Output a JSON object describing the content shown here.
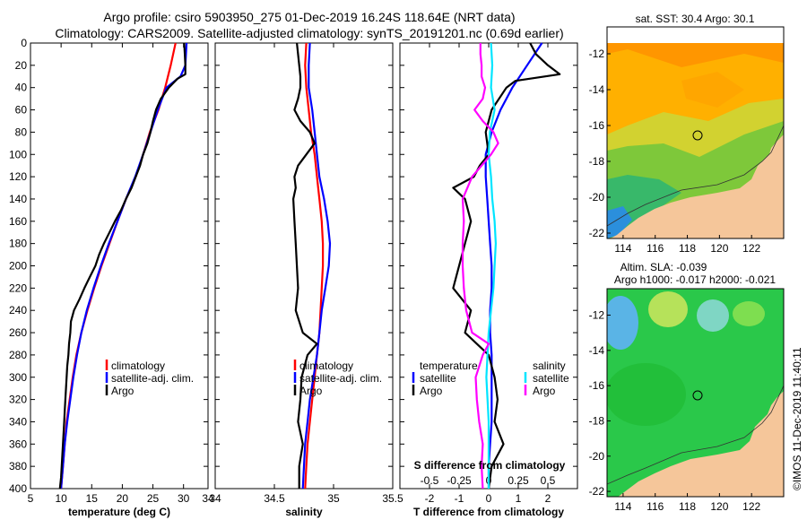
{
  "titles": {
    "line1": "Argo profile: csiro 5903950_275 01-Dec-2019 16.24S 118.64E (NRT data)",
    "line2": "Climatology: CARS2009. Satellite-adjusted climatology: synTS_20191201.nc (0.69d earlier)"
  },
  "colors": {
    "climatology": "#ff0000",
    "satellite": "#0000ff",
    "argo": "#000000",
    "sal_satellite": "#00e5ff",
    "sal_argo": "#ff00ff",
    "land": "#f5c69a"
  },
  "watermark": "©IMOS 11-Dec-2019 11:40:11",
  "chart_data": [
    {
      "id": "temperature",
      "type": "line",
      "xlabel": "temperature (deg C)",
      "xlim": [
        5,
        34
      ],
      "xticks": [
        5,
        10,
        15,
        20,
        25,
        30,
        34
      ],
      "ylim": [
        0,
        400
      ],
      "yticks": [
        0,
        20,
        40,
        60,
        80,
        100,
        120,
        140,
        160,
        180,
        200,
        220,
        240,
        260,
        280,
        300,
        320,
        340,
        360,
        380,
        400
      ],
      "legend": [
        "climatology",
        "satellite-adj. clim.",
        "Argo"
      ],
      "series": [
        {
          "name": "climatology",
          "color": "#ff0000",
          "depth": [
            0,
            20,
            40,
            60,
            80,
            100,
            120,
            140,
            160,
            180,
            200,
            220,
            240,
            260,
            280,
            300,
            320,
            340,
            360,
            380,
            400
          ],
          "values": [
            28.7,
            27.9,
            27.0,
            25.9,
            24.5,
            23.4,
            22.2,
            20.6,
            19.2,
            17.9,
            16.6,
            15.4,
            14.3,
            13.3,
            12.5,
            11.9,
            11.4,
            10.9,
            10.6,
            10.3,
            10.0
          ]
        },
        {
          "name": "satellite-adj. clim.",
          "color": "#0000ff",
          "depth": [
            0,
            20,
            30,
            40,
            60,
            80,
            100,
            120,
            140,
            160,
            180,
            200,
            220,
            240,
            260,
            280,
            300,
            320,
            340,
            360,
            380,
            400
          ],
          "values": [
            30.5,
            30.3,
            29.5,
            27.2,
            25.8,
            24.6,
            23.4,
            22.1,
            20.6,
            19.2,
            17.8,
            16.5,
            15.3,
            14.2,
            13.3,
            12.6,
            12.0,
            11.5,
            11.0,
            10.6,
            10.3,
            10.0
          ]
        },
        {
          "name": "Argo",
          "color": "#000000",
          "depth": [
            0,
            10,
            20,
            28,
            32,
            40,
            50,
            60,
            70,
            80,
            90,
            100,
            110,
            120,
            130,
            140,
            150,
            160,
            170,
            180,
            190,
            200,
            210,
            220,
            230,
            240,
            250,
            260,
            270,
            280,
            290,
            300,
            310,
            320,
            330,
            340,
            350,
            360,
            370,
            380,
            390,
            400
          ],
          "values": [
            30.1,
            30.2,
            30.3,
            30.3,
            29.0,
            27.6,
            26.3,
            25.5,
            25.0,
            24.6,
            24.1,
            23.4,
            22.9,
            22.2,
            21.5,
            20.6,
            19.8,
            18.8,
            17.9,
            17.0,
            16.2,
            15.6,
            14.7,
            13.8,
            13.0,
            12.1,
            11.6,
            11.5,
            11.3,
            11.2,
            11.0,
            10.9,
            10.8,
            10.7,
            10.6,
            10.5,
            10.4,
            10.3,
            10.2,
            10.1,
            10.0,
            9.8
          ]
        }
      ]
    },
    {
      "id": "salinity",
      "type": "line",
      "xlabel": "salinity",
      "xlim": [
        34,
        35.5
      ],
      "xticks": [
        34,
        34.5,
        35,
        35.5
      ],
      "ylim": [
        0,
        400
      ],
      "legend": [
        "climatology",
        "satellite-adj. clim.",
        "Argo"
      ],
      "series": [
        {
          "name": "climatology",
          "color": "#ff0000",
          "depth": [
            0,
            20,
            40,
            60,
            80,
            100,
            120,
            140,
            160,
            180,
            200,
            220,
            240,
            260,
            280,
            300,
            320,
            340,
            360,
            380,
            400
          ],
          "values": [
            34.77,
            34.76,
            34.77,
            34.79,
            34.81,
            34.84,
            34.86,
            34.88,
            34.9,
            34.91,
            34.91,
            34.9,
            34.89,
            34.88,
            34.86,
            34.84,
            34.82,
            34.8,
            34.78,
            34.77,
            34.76
          ]
        },
        {
          "name": "satellite-adj. clim.",
          "color": "#0000ff",
          "depth": [
            0,
            20,
            40,
            60,
            80,
            100,
            120,
            140,
            160,
            180,
            200,
            220,
            240,
            260,
            280,
            300,
            320,
            340,
            360,
            380,
            400
          ],
          "values": [
            34.8,
            34.79,
            34.79,
            34.82,
            34.84,
            34.86,
            34.88,
            34.92,
            34.95,
            34.97,
            34.96,
            34.93,
            34.9,
            34.88,
            34.86,
            34.83,
            34.8,
            34.78,
            34.76,
            34.75,
            34.74
          ]
        },
        {
          "name": "Argo",
          "color": "#000000",
          "depth": [
            0,
            10,
            20,
            30,
            40,
            50,
            60,
            70,
            80,
            90,
            100,
            110,
            120,
            130,
            140,
            160,
            180,
            200,
            220,
            240,
            260,
            270,
            280,
            300,
            320,
            340,
            360,
            380,
            400
          ],
          "values": [
            34.69,
            34.7,
            34.71,
            34.72,
            34.72,
            34.7,
            34.67,
            34.72,
            34.8,
            34.84,
            34.77,
            34.7,
            34.67,
            34.68,
            34.66,
            34.67,
            34.68,
            34.69,
            34.7,
            34.68,
            34.74,
            34.86,
            34.78,
            34.73,
            34.72,
            34.7,
            34.74,
            34.71,
            34.71
          ]
        }
      ]
    },
    {
      "id": "difference",
      "type": "line",
      "xlabel": "T difference from climatology",
      "xlabel2": "S difference from climatology",
      "xlim": [
        -3,
        3
      ],
      "xticks": [
        -2,
        -1,
        0,
        1,
        2
      ],
      "xlim_s": [
        -0.75,
        0.75
      ],
      "xticks_s": [
        -0.5,
        -0.25,
        0,
        0.25,
        0.5
      ],
      "ylim": [
        0,
        400
      ],
      "legend_left": {
        "title": "temperature",
        "items": [
          "satellite",
          "Argo"
        ]
      },
      "legend_right": {
        "title": "salinity",
        "items": [
          "satellite",
          "Argo"
        ]
      },
      "series": [
        {
          "name": "T satellite",
          "axis": "T",
          "color": "#0000ff",
          "depth": [
            0,
            20,
            40,
            60,
            80,
            100,
            120,
            140,
            160,
            180,
            200,
            220,
            240,
            260,
            280,
            300,
            320,
            340,
            360,
            380,
            400
          ],
          "values": [
            1.8,
            1.3,
            0.8,
            0.4,
            0.1,
            -0.1,
            -0.1,
            -0.05,
            0,
            0.05,
            0.1,
            0.1,
            0.05,
            0.05,
            0.1,
            0.1,
            0.1,
            0.1,
            0.05,
            0,
            0
          ]
        },
        {
          "name": "T Argo",
          "axis": "T",
          "color": "#000000",
          "depth": [
            0,
            10,
            20,
            28,
            34,
            40,
            60,
            80,
            100,
            110,
            120,
            130,
            140,
            160,
            180,
            200,
            220,
            240,
            260,
            280,
            300,
            320,
            340,
            360,
            380,
            400
          ],
          "values": [
            1.4,
            1.6,
            2.0,
            2.4,
            0.9,
            0.6,
            0.1,
            -0.1,
            0,
            -0.3,
            -0.5,
            -1.2,
            -0.8,
            -0.6,
            -0.8,
            -1.0,
            -1.2,
            -0.6,
            -0.8,
            0.0,
            0.2,
            0.3,
            0.2,
            0.5,
            0.1,
            0.0
          ]
        },
        {
          "name": "S satellite",
          "axis": "S",
          "color": "#00e5ff",
          "depth": [
            0,
            20,
            40,
            60,
            80,
            100,
            120,
            140,
            160,
            180,
            200,
            220,
            240,
            260,
            280,
            300,
            320,
            340,
            360,
            380,
            400
          ],
          "values": [
            0.02,
            0.03,
            0.02,
            0.05,
            0.01,
            0.0,
            0.02,
            0.03,
            0.05,
            0.06,
            0.05,
            0.04,
            0.02,
            0.0,
            -0.01,
            -0.02,
            -0.01,
            0.0,
            0.0,
            0.0,
            0.0
          ]
        },
        {
          "name": "S Argo",
          "axis": "S",
          "color": "#ff00ff",
          "depth": [
            0,
            10,
            20,
            30,
            40,
            50,
            60,
            70,
            80,
            90,
            100,
            120,
            140,
            160,
            180,
            200,
            220,
            240,
            260,
            270,
            280,
            300,
            320,
            340,
            360,
            380,
            400
          ],
          "values": [
            -0.07,
            -0.07,
            -0.06,
            -0.06,
            -0.03,
            -0.05,
            -0.12,
            -0.05,
            0.04,
            0.08,
            0.02,
            -0.14,
            -0.22,
            -0.21,
            -0.22,
            -0.22,
            -0.21,
            -0.19,
            -0.14,
            0.0,
            -0.05,
            -0.11,
            -0.1,
            -0.08,
            -0.05,
            -0.06,
            -0.05
          ]
        }
      ]
    },
    {
      "id": "sst_map",
      "type": "heatmap",
      "title": "sat. SST: 30.4 Argo: 30.1",
      "xticks": [
        114,
        116,
        118,
        120,
        122
      ],
      "yticks": [
        -12,
        -14,
        -16,
        -18,
        -20,
        -22
      ],
      "xlim": [
        113,
        124
      ],
      "ylim": [
        -22.3,
        -10.5
      ],
      "marker": {
        "lon": 118.64,
        "lat": -16.24
      }
    },
    {
      "id": "sla_map",
      "type": "heatmap",
      "title": "Altim. SLA: -0.039",
      "subtitle": "Argo h1000: -0.017 h2000: -0.021",
      "xticks": [
        114,
        116,
        118,
        120,
        122
      ],
      "yticks": [
        -12,
        -14,
        -16,
        -18,
        -20,
        -22
      ],
      "xlim": [
        113,
        124
      ],
      "ylim": [
        -22.3,
        -10.5
      ],
      "marker": {
        "lon": 118.64,
        "lat": -16.24
      }
    }
  ]
}
